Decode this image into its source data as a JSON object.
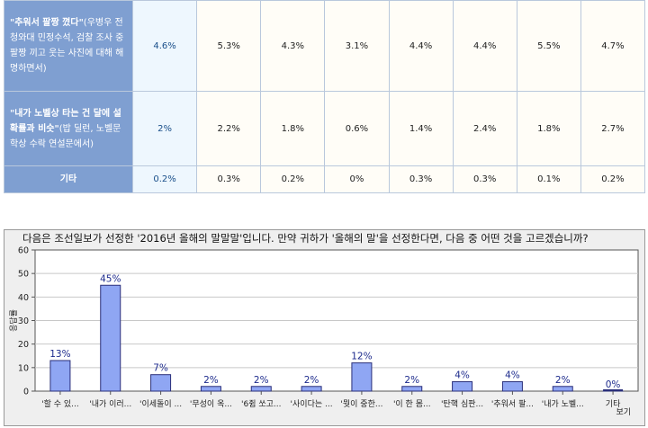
{
  "table": {
    "rows": [
      {
        "label_quote": "\"추워서 팔짱 꼈다\"",
        "label_rest": "(우병우 전 청와대 민정수석, 검찰 조사 중 팔짱 끼고 웃는 사진에 대해 해명하면서)",
        "values": [
          "4.6%",
          "5.3%",
          "4.3%",
          "3.1%",
          "4.4%",
          "4.4%",
          "5.5%",
          "4.7%"
        ]
      },
      {
        "label_quote": "\"내가 노벨상 타는 건 달에 설 확률과 비슷\"",
        "label_rest": "(밥 딜런, 노벨문학상 수락 연설문에서)",
        "values": [
          "2%",
          "2.2%",
          "1.8%",
          "0.6%",
          "1.4%",
          "2.4%",
          "1.8%",
          "2.7%"
        ]
      },
      {
        "label_quote": "기타",
        "label_rest": "",
        "values": [
          "0.2%",
          "0.3%",
          "0.2%",
          "0%",
          "0.3%",
          "0.3%",
          "0.1%",
          "0.2%"
        ]
      }
    ]
  },
  "chart_data": {
    "type": "bar",
    "title": "다음은 조선일보가 선정한 '2016년 올해의 말말말'입니다. 만약 귀하가 '올해의 말'을 선정한다면, 다음 중 어떤 것을 고르겠습니까?",
    "ylabel": "응답률",
    "ylim": [
      0,
      60
    ],
    "yticks": [
      0,
      10,
      20,
      30,
      40,
      50,
      60
    ],
    "grid": true,
    "categories": [
      "'할 수 있...",
      "'내가 이러...",
      "'이세돌이 ...",
      "'무성이 옥...",
      "'6쥠 쏘고...",
      "'사이다는 ...",
      "'뭣이 중한...",
      "'이 한 몸...",
      "'탄핵 심판...",
      "'추워서 팔...",
      "'내가 노벨...",
      "기타"
    ],
    "values": [
      13,
      45,
      7,
      2,
      2,
      2,
      12,
      2,
      4,
      4,
      2,
      0
    ],
    "value_labels": [
      "13%",
      "45%",
      "7%",
      "2%",
      "2%",
      "2%",
      "12%",
      "2%",
      "4%",
      "4%",
      "2%",
      "0%"
    ],
    "view_label": "보기",
    "bar_color": "#8fa6f3",
    "bar_stroke": "#2a2f7a",
    "label_color": "#1c2a8c"
  }
}
